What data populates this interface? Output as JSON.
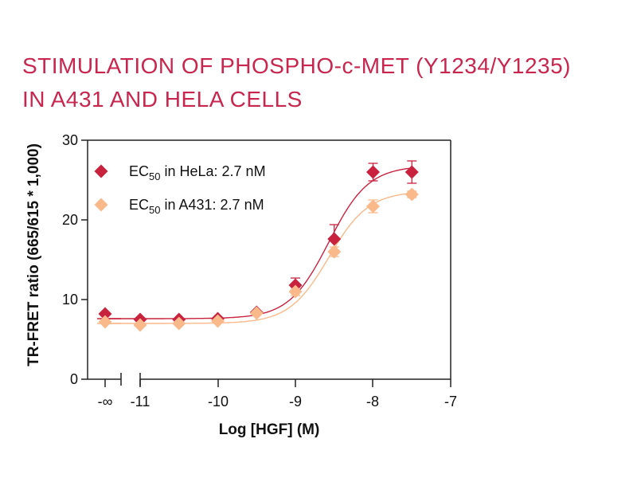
{
  "chart_data": {
    "type": "scatter",
    "title_line1": "STIMULATION OF PHOSPHO-c-MET (Y1234/Y1235)",
    "title_line2": "IN A431 AND HELA CELLS",
    "xlabel": "Log [HGF] (M)",
    "ylabel": "TR-FRET ratio (665/615 * 1,000)",
    "xlim": [
      -11,
      -7
    ],
    "ylim": [
      0,
      30
    ],
    "x_ticks": [
      "-∞",
      "-11",
      "-10",
      "-9",
      "-8",
      "-7"
    ],
    "y_ticks": [
      "0",
      "10",
      "20",
      "30"
    ],
    "legend_position": "top-left",
    "series": [
      {
        "name": "EC50 in HeLa: 2.7 nM",
        "legend_main": "EC",
        "legend_sub": "50",
        "legend_rest": " in HeLa: 2.7 nM",
        "color": "#c8223f",
        "x": [
          "-∞",
          -11,
          -10.5,
          -10,
          -9.5,
          -9,
          -8.5,
          -8,
          -7.5
        ],
        "y": [
          8.2,
          7.5,
          7.5,
          7.6,
          8.4,
          11.8,
          17.6,
          26.0,
          26.0
        ],
        "error": [
          0,
          0,
          0,
          0,
          0,
          0.9,
          1.8,
          1.1,
          1.4
        ],
        "fit": {
          "bottom": 7.6,
          "top": 26.8,
          "log_ec50": -8.57,
          "hill": 1.7
        }
      },
      {
        "name": "EC50 in A431: 2.7 nM",
        "legend_main": "EC",
        "legend_sub": "50",
        "legend_rest": " in A431: 2.7 nM",
        "color": "#f9b98a",
        "x": [
          "-∞",
          -11,
          -10.5,
          -10,
          -9.5,
          -9,
          -8.5,
          -8,
          -7.5
        ],
        "y": [
          7.2,
          6.8,
          7.0,
          7.3,
          8.3,
          11.0,
          16.0,
          21.7,
          23.2
        ],
        "error": [
          0,
          0,
          0,
          0,
          0,
          0.5,
          0.6,
          0.8,
          0.4
        ],
        "fit": {
          "bottom": 7.0,
          "top": 23.6,
          "log_ec50": -8.57,
          "hill": 1.7
        }
      }
    ]
  }
}
